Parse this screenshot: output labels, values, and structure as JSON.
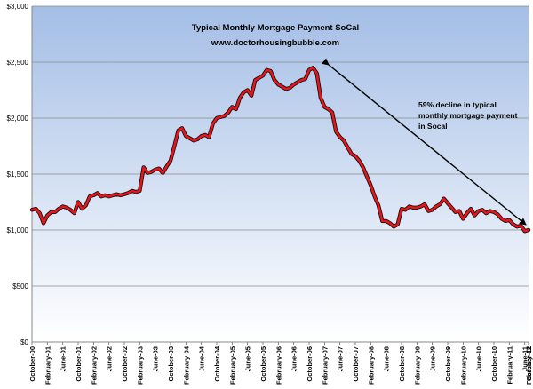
{
  "chart_data": {
    "type": "line",
    "title": "Typical Monthly Mortgage Payment  SoCal",
    "subtitle": "www.doctorhousingbubble.com",
    "annotation": [
      "59% decline in typical",
      "monthly mortgage payment",
      "in Socal"
    ],
    "ylim": [
      0,
      3000
    ],
    "y_ticks": [
      "$0",
      "$500",
      "$1,000",
      "$1,500",
      "$2,000",
      "$2,500",
      "$3,000"
    ],
    "x_tick_labels": [
      "October-00",
      "February-01",
      "June-01",
      "October-01",
      "February-02",
      "June-02",
      "October-02",
      "February-03",
      "June-03",
      "October-03",
      "February-04",
      "June-04",
      "October-04",
      "February-05",
      "June-05",
      "October-05",
      "February-06",
      "June-06",
      "October-06",
      "February-07",
      "June-07",
      "October-07",
      "February-08",
      "June-08",
      "October-08",
      "February-09",
      "June-09",
      "October-09",
      "February-10",
      "June-10",
      "October-10",
      "February-11",
      "June-11",
      "October-11",
      "February-12"
    ],
    "grid": true,
    "series": [
      {
        "values": [
          1180,
          1190,
          1150,
          1060,
          1130,
          1160,
          1160,
          1190,
          1210,
          1200,
          1180,
          1150,
          1250,
          1190,
          1220,
          1300,
          1310,
          1330,
          1300,
          1310,
          1300,
          1310,
          1320,
          1310,
          1320,
          1330,
          1350,
          1340,
          1350,
          1560,
          1510,
          1520,
          1540,
          1550,
          1510,
          1570,
          1620,
          1750,
          1890,
          1910,
          1840,
          1820,
          1800,
          1810,
          1840,
          1850,
          1830,
          1950,
          2000,
          2010,
          2020,
          2050,
          2100,
          2080,
          2180,
          2230,
          2250,
          2200,
          2340,
          2360,
          2380,
          2430,
          2420,
          2340,
          2300,
          2280,
          2260,
          2270,
          2300,
          2320,
          2340,
          2350,
          2430,
          2450,
          2400,
          2180,
          2100,
          2080,
          2050,
          1880,
          1830,
          1800,
          1740,
          1680,
          1660,
          1620,
          1560,
          1480,
          1400,
          1300,
          1220,
          1080,
          1080,
          1060,
          1030,
          1050,
          1190,
          1180,
          1210,
          1200,
          1200,
          1210,
          1230,
          1170,
          1180,
          1210,
          1230,
          1280,
          1240,
          1200,
          1160,
          1170,
          1100,
          1150,
          1190,
          1130,
          1170,
          1180,
          1150,
          1170,
          1160,
          1140,
          1100,
          1080,
          1090,
          1050,
          1030,
          1040,
          990,
          1000
        ],
        "color": "#e8161b"
      }
    ],
    "colors": {
      "plot_top": "#a4bee6",
      "plot_bottom": "#ffffff",
      "line": "#e8161b",
      "line_shadow": "#111111"
    }
  }
}
